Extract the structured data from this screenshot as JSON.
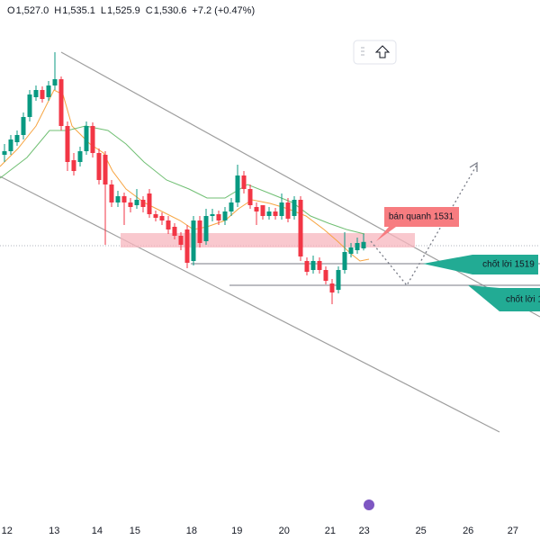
{
  "chart_data": {
    "type": "candlestick",
    "header": [
      "O",
      "1,527.0",
      "H",
      "1,535.1",
      "L",
      "1,525.9",
      "C",
      "1,530.6",
      "+7.2 (+0.47%)"
    ],
    "open": [
      1579,
      1581,
      1586,
      1590,
      1600,
      1611,
      1615,
      1611,
      1617.5,
      1621,
      1595,
      1576,
      1575,
      1581,
      1595,
      1580,
      1579,
      1562.5,
      1552.5,
      1556,
      1552.5,
      1551,
      1554,
      1557.5,
      1546,
      1545,
      1542.5,
      1539,
      1534,
      1537.5,
      1520,
      1542.5,
      1531,
      1545,
      1546,
      1542.5,
      1547.5,
      1552.5,
      1567.5,
      1560,
      1550,
      1551,
      1545,
      1547.5,
      1545,
      1552.5,
      1545,
      1554,
      1520,
      1515,
      1520,
      1515,
      1507.5,
      1504,
      1515,
      1524,
      1526,
      1527
    ],
    "high": [
      1585,
      1590,
      1592.5,
      1602.5,
      1615,
      1617.5,
      1617,
      1620,
      1636,
      1622.5,
      1597.5,
      1580,
      1583.5,
      1597.5,
      1597,
      1582.5,
      1581,
      1565,
      1559,
      1558,
      1555,
      1560,
      1556,
      1560,
      1548,
      1547,
      1545,
      1541,
      1536,
      1540,
      1545,
      1545,
      1549,
      1549,
      1548,
      1550,
      1555,
      1573.5,
      1570,
      1562.5,
      1552.5,
      1551,
      1550,
      1549.5,
      1557.5,
      1555,
      1556,
      1556,
      1522,
      1523,
      1522,
      1517,
      1510,
      1517,
      1536,
      1530,
      1533,
      1535.1
    ],
    "low": [
      1575,
      1579,
      1584,
      1587.5,
      1597.5,
      1609,
      1608,
      1609,
      1615,
      1592.5,
      1570,
      1567.5,
      1572.5,
      1579,
      1577.5,
      1562.5,
      1529,
      1550,
      1550,
      1540,
      1547,
      1549,
      1547,
      1544,
      1542,
      1540,
      1535,
      1532,
      1526,
      1516,
      1517.5,
      1527.5,
      1529,
      1542,
      1540,
      1540,
      1545,
      1550,
      1557.5,
      1549,
      1540,
      1543,
      1543,
      1543,
      1543,
      1541.5,
      1543,
      1520,
      1512,
      1513,
      1513,
      1507,
      1496,
      1502,
      1513,
      1522,
      1524,
      1525.9
    ],
    "close": [
      1581,
      1587.5,
      1590,
      1600,
      1612.5,
      1615,
      1610,
      1617.5,
      1621,
      1595,
      1575,
      1570,
      1581,
      1595,
      1580,
      1565,
      1562.5,
      1552.5,
      1556,
      1552.5,
      1550,
      1554,
      1550,
      1546,
      1544,
      1542.5,
      1537.5,
      1534,
      1529,
      1519,
      1542.5,
      1530,
      1545,
      1546,
      1542.5,
      1547.5,
      1552.5,
      1567.5,
      1560,
      1551,
      1547.5,
      1545,
      1547.5,
      1545,
      1552.5,
      1543.5,
      1554,
      1522.5,
      1514,
      1520,
      1515,
      1509,
      1502.5,
      1515,
      1525,
      1527.5,
      1530,
      1530.6
    ],
    "up_color": "#089981",
    "down_color": "#f23645",
    "ylim": [
      1365,
      1665
    ],
    "xticks": [
      {
        "value": 0.4,
        "label": "12"
      },
      {
        "value": 7.9,
        "label": "13"
      },
      {
        "value": 14.7,
        "label": "14"
      },
      {
        "value": 20.7,
        "label": "15"
      },
      {
        "value": 29.7,
        "label": "18"
      },
      {
        "value": 36.9,
        "label": "19"
      },
      {
        "value": 44.4,
        "label": "20"
      },
      {
        "value": 51.7,
        "label": "21"
      },
      {
        "value": 57.1,
        "label": "23"
      },
      {
        "value": 66.1,
        "label": "25"
      },
      {
        "value": 73.6,
        "label": "26"
      },
      {
        "value": 80.7,
        "label": "27"
      }
    ],
    "annotations": [
      "bán quanh 1531",
      "chốt lời 1519",
      "chốt lời 1"
    ]
  }
}
